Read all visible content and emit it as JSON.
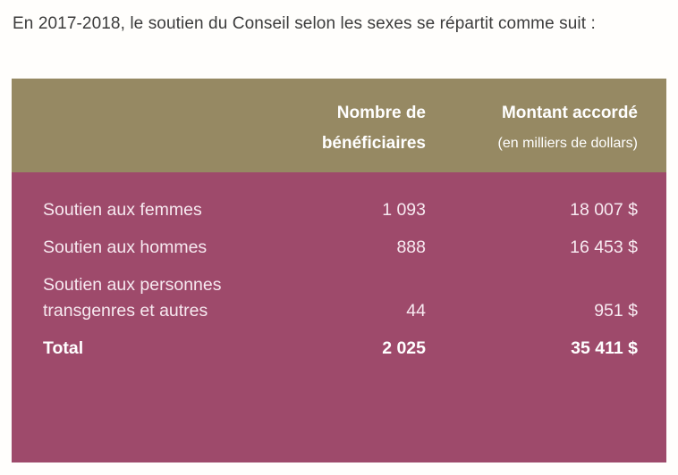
{
  "intro": {
    "text": "En 2017-2018, le soutien du Conseil selon les sexes se répartit comme suit :"
  },
  "table": {
    "header": {
      "beneficiaries_line1": "Nombre de",
      "beneficiaries_line2": "bénéficiaires",
      "amount_title": "Montant accordé",
      "amount_subtitle": "(en milliers de dollars)"
    },
    "rows": [
      {
        "label": "Soutien aux femmes",
        "beneficiaries": "1 093",
        "amount": "18 007 $"
      },
      {
        "label": "Soutien aux hommes",
        "beneficiaries": "888",
        "amount": "16 453 $"
      },
      {
        "label": "Soutien aux personnes\ntransgenres et autres",
        "beneficiaries": "44",
        "amount": "951 $"
      },
      {
        "label": "Total",
        "beneficiaries": "2 025",
        "amount": "35 411 $"
      }
    ]
  },
  "colors": {
    "header_bg": "#968963",
    "body_bg": "#9e4a6b",
    "header_text": "#ffffff",
    "row_text": "#f7e9f0",
    "total_text": "#ffffff",
    "intro_text": "#3c3c3c",
    "page_bg": "#fffefc"
  },
  "chart_data": {
    "type": "table",
    "title": "Soutien du Conseil selon les sexes, 2017-2018",
    "columns": [
      "",
      "Nombre de bénéficiaires",
      "Montant accordé (en milliers de dollars)"
    ],
    "rows": [
      [
        "Soutien aux femmes",
        1093,
        18007
      ],
      [
        "Soutien aux hommes",
        888,
        16453
      ],
      [
        "Soutien aux personnes transgenres et autres",
        44,
        951
      ],
      [
        "Total",
        2025,
        35411
      ]
    ]
  }
}
